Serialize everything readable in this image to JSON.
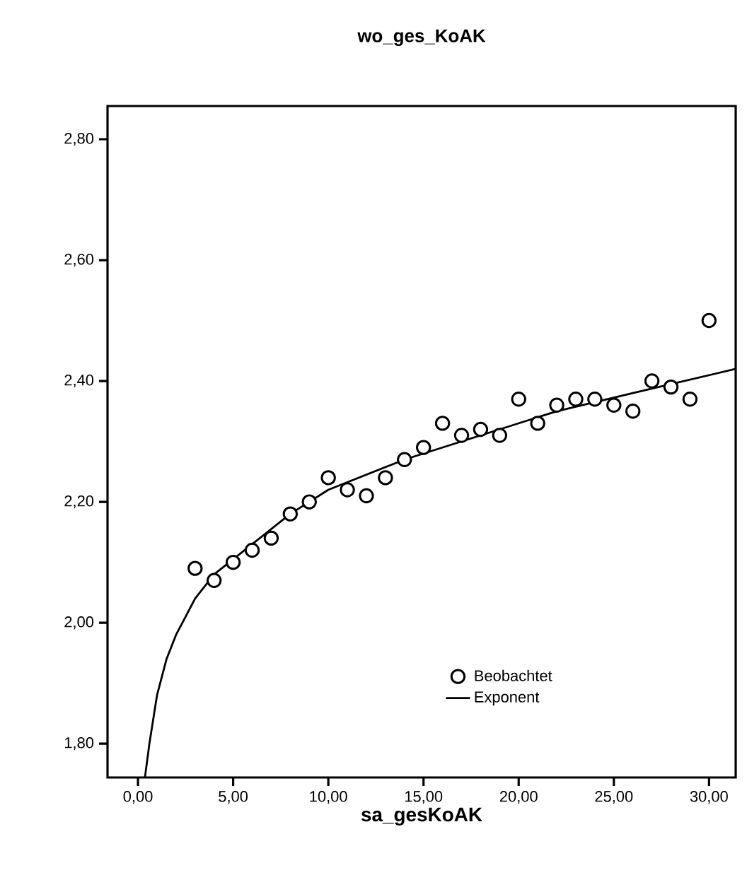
{
  "chart_data": {
    "type": "scatter",
    "title": "wo_ges_KoAK",
    "xlabel": "sa_gesKoAK",
    "xlim": [
      -1.6,
      31.4
    ],
    "ylim": [
      1.744,
      2.855
    ],
    "xticks": [
      {
        "value": 0,
        "label": "0,00"
      },
      {
        "value": 5,
        "label": "5,00"
      },
      {
        "value": 10,
        "label": "10,00"
      },
      {
        "value": 15,
        "label": "15,00"
      },
      {
        "value": 20,
        "label": "20,00"
      },
      {
        "value": 25,
        "label": "25,00"
      },
      {
        "value": 30,
        "label": "30,00"
      }
    ],
    "yticks": [
      {
        "value": 1.8,
        "label": "1,80"
      },
      {
        "value": 2.0,
        "label": "2,00"
      },
      {
        "value": 2.2,
        "label": "2,20"
      },
      {
        "value": 2.4,
        "label": "2,40"
      },
      {
        "value": 2.6,
        "label": "2,60"
      },
      {
        "value": 2.8,
        "label": "2,80"
      }
    ],
    "grid": false,
    "legend": "bottom right",
    "series": [
      {
        "name": "Beobachtet",
        "marker": "circle",
        "color": "#000000",
        "x": [
          3,
          4,
          5,
          6,
          7,
          8,
          9,
          10,
          11,
          12,
          13,
          14,
          15,
          16,
          17,
          18,
          19,
          20,
          21,
          22,
          23,
          24,
          25,
          26,
          27,
          28,
          29,
          30
        ],
        "values": [
          2.09,
          2.07,
          2.1,
          2.12,
          2.14,
          2.18,
          2.2,
          2.24,
          2.22,
          2.21,
          2.24,
          2.27,
          2.29,
          2.33,
          2.31,
          2.32,
          2.31,
          2.37,
          2.33,
          2.36,
          2.37,
          2.37,
          2.36,
          2.35,
          2.4,
          2.39,
          2.37,
          2.5
        ]
      },
      {
        "name": "Exponent",
        "type": "line",
        "marker": "none",
        "line_style": "solid",
        "color": "#000000",
        "x": [
          0.37,
          0.6,
          1,
          1.5,
          2,
          3,
          4,
          6,
          8,
          10,
          14,
          18,
          22,
          26,
          31.4
        ],
        "values": [
          1.745,
          1.8,
          1.88,
          1.94,
          1.98,
          2.04,
          2.08,
          2.13,
          2.18,
          2.22,
          2.27,
          2.31,
          2.35,
          2.38,
          2.42
        ]
      }
    ]
  }
}
